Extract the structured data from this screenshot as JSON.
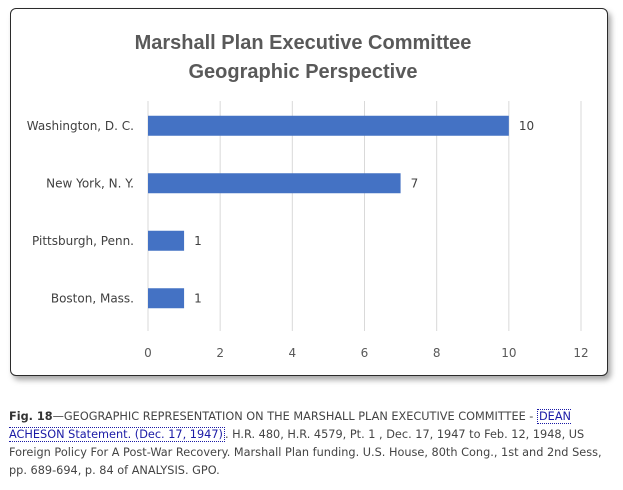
{
  "chart_data": {
    "type": "bar",
    "orientation": "horizontal",
    "title_lines": [
      "Marshall Plan Executive Committee",
      "Geographic  Perspective"
    ],
    "categories": [
      "Washington, D. C.",
      "New York, N. Y.",
      "Pittsburgh, Penn.",
      "Boston, Mass."
    ],
    "values": [
      10,
      7,
      1,
      1
    ],
    "xlim": [
      0,
      12
    ],
    "xticks": [
      "0",
      "2",
      "4",
      "6",
      "8",
      "10",
      "12"
    ],
    "grid": true,
    "legend": "none",
    "bar_color": "#4472c4",
    "grid_color": "#d9d9d9"
  },
  "caption": {
    "fig_label": "Fig. 18",
    "text_before_link": "—GEOGRAPHIC REPRESENTATION ON THE MARSHALL PLAN EXECUTIVE COMMITTEE - ",
    "link_text": "DEAN ACHESON Statement. (Dec. 17, 1947)",
    "text_after_link": ". H.R. 480, H.R. 4579, Pt. 1 , Dec. 17, 1947 to Feb. 12, 1948, US Foreign Policy For A Post-War Recovery. Marshall Plan funding. U.S. House, 80th Cong., 1st and 2nd Sess, pp. 689-694, p. 84 of ANALYSIS. GPO."
  }
}
